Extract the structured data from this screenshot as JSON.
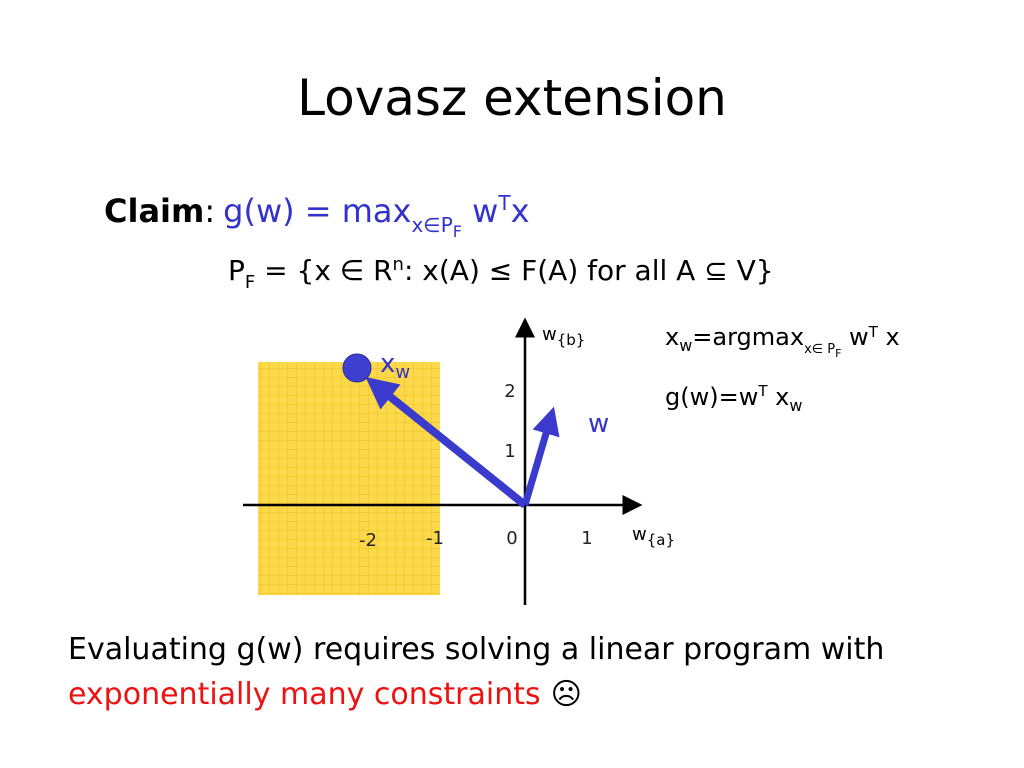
{
  "title": "Lovasz extension",
  "claim": {
    "label": "Claim",
    "colon": ":",
    "lhs": "g(w) = max",
    "sub": "x∈P",
    "subsub": "F",
    "w": " w",
    "sup": "T",
    "x": "x"
  },
  "polytope": {
    "p": "P",
    "sub": "F",
    "body": " = {x ∈ R",
    "sup": "n",
    "rest": ": x(A) ≤ F(A) for all A ⊆ V}"
  },
  "diagram": {
    "x_axis": {
      "label": "w",
      "sub": "{a}"
    },
    "y_axis": {
      "label": "w",
      "sub": "{b}"
    },
    "x_ticks": [
      "-2",
      "-1",
      "0",
      "1"
    ],
    "y_ticks": [
      "1",
      "2"
    ],
    "point_label": {
      "label": "x",
      "sub": "w"
    },
    "vector_label": "w"
  },
  "notes": [
    {
      "x": "x",
      "sub": "w",
      "eq": "=argmax",
      "sub2": "x∈ P",
      "subsub": "F",
      "w": " w",
      "sup": "T",
      "x2": " x"
    },
    {
      "lhs": "g(w)=w",
      "sup": "T",
      "x": " x",
      "sub": "w"
    }
  ],
  "footer": {
    "line1": "Evaluating g(w) requires solving a linear program with",
    "highlight": "exponentially many constraints",
    "emoji": "☹"
  }
}
